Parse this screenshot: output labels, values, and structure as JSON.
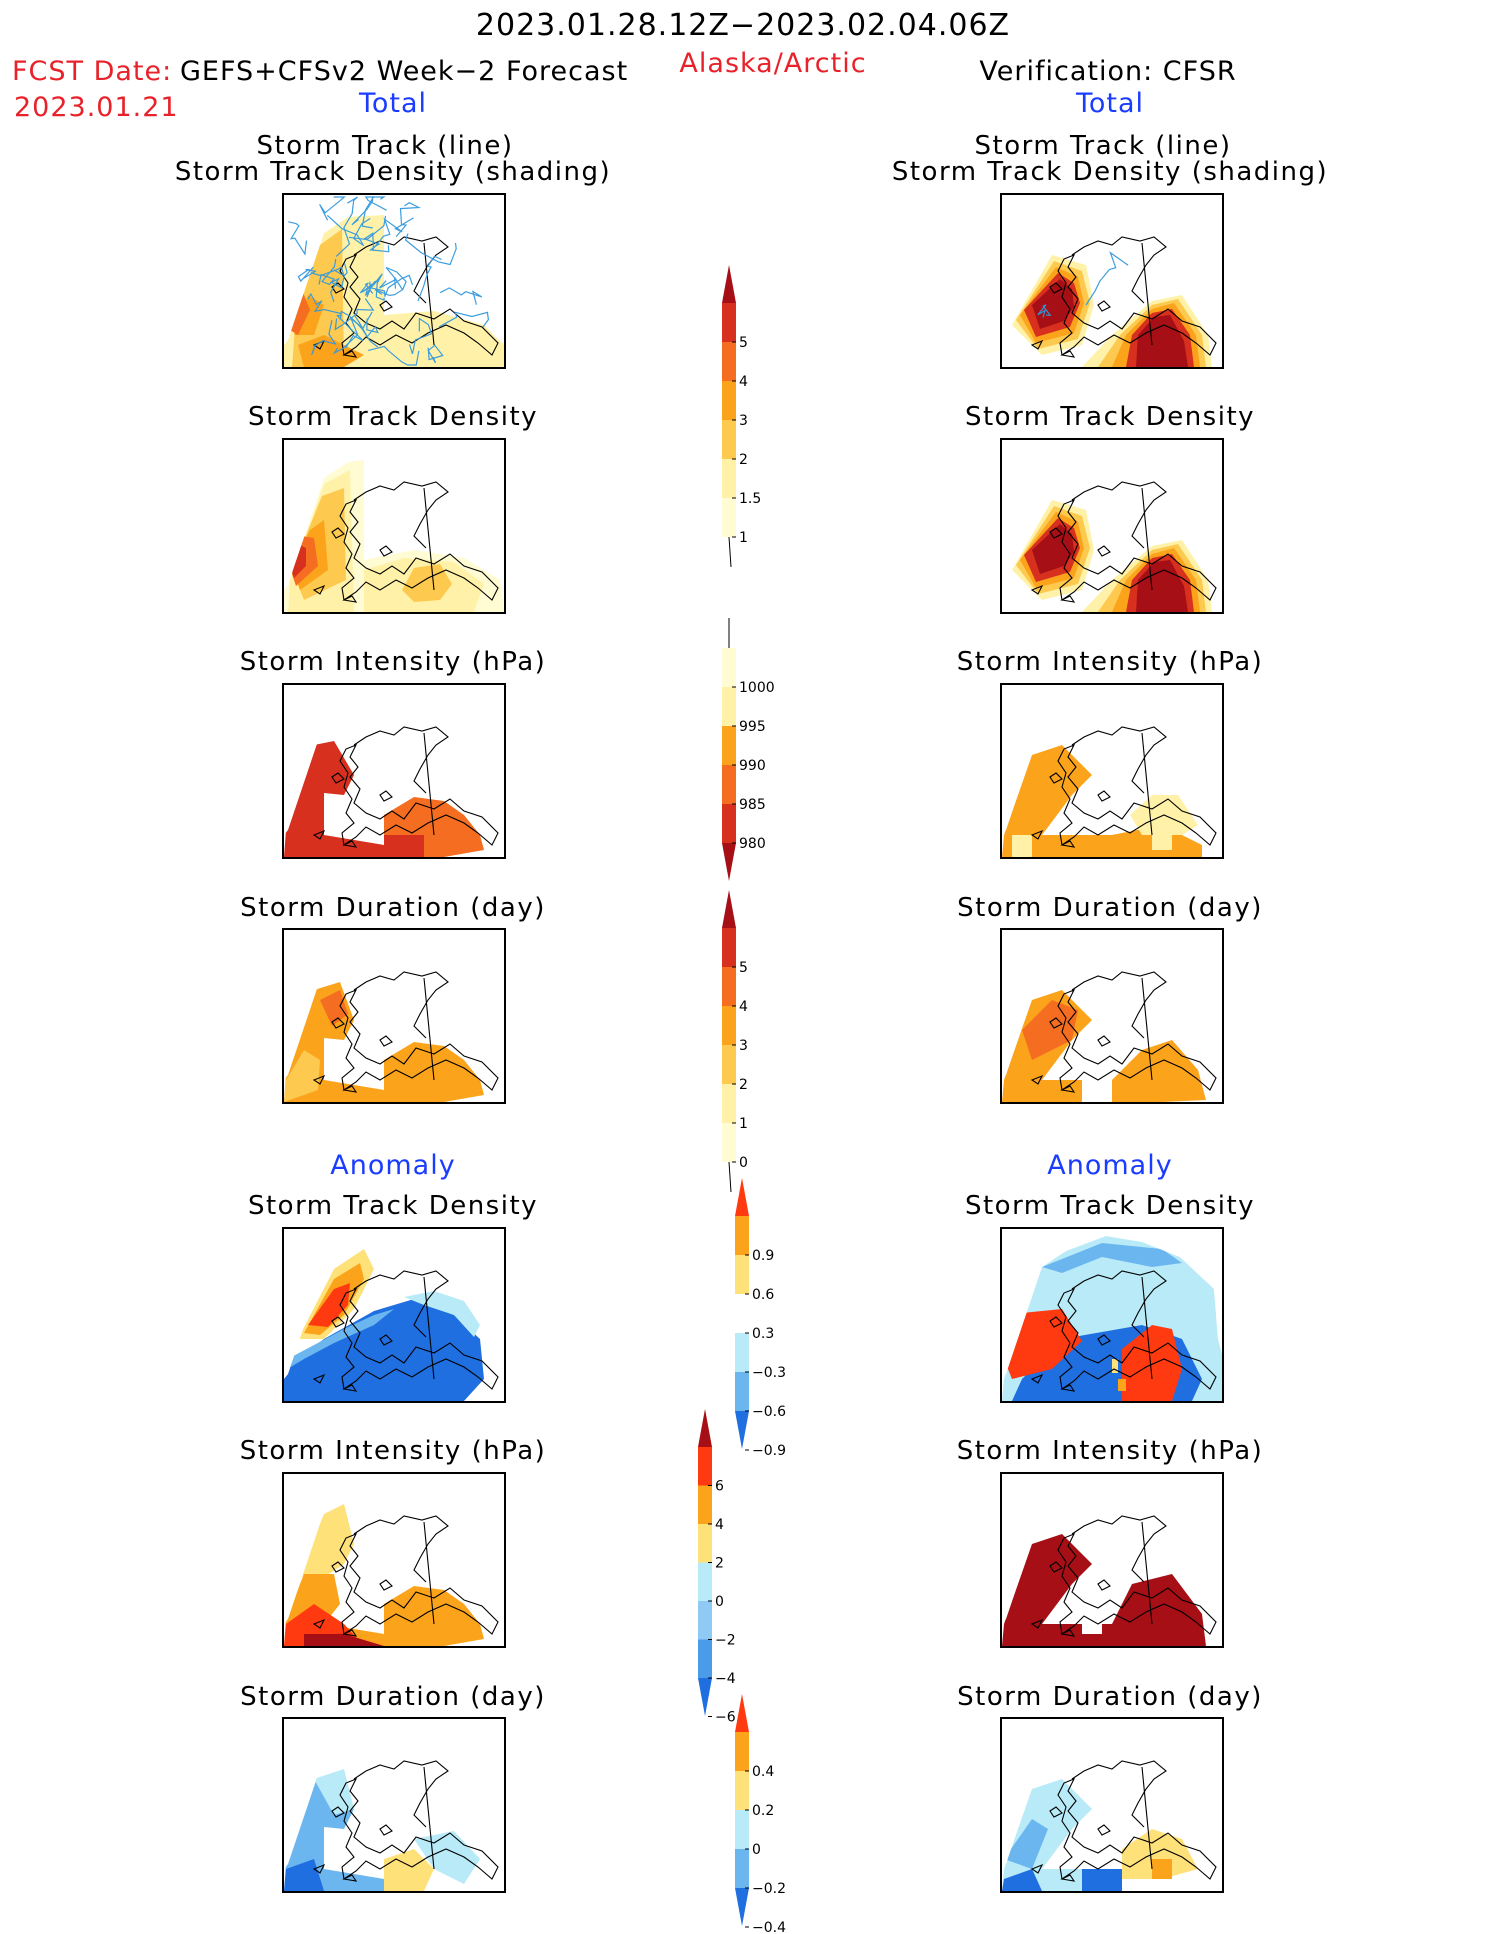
{
  "header": {
    "date_range": "2023.01.28.12Z−2023.02.04.06Z",
    "fcst_label": "FCST Date:",
    "fcst_model": "GEFS+CFSv2 Week−2 Forecast",
    "fcst_date": "2023.01.21",
    "region": "Alaska/Arctic",
    "verification": "Verification: CFSR"
  },
  "sections": {
    "total": "Total",
    "anomaly": "Anomaly"
  },
  "panel_titles": {
    "track_line": "Storm Track (line)",
    "track_shading": "Storm Track Density (shading)",
    "density": "Storm Track Density",
    "intensity": "Storm Intensity (hPa)",
    "duration": "Storm Duration (day)"
  },
  "colorbars": [
    {
      "id": "density-total",
      "labels": [
        "5",
        "4",
        "3",
        "2",
        "1.5",
        "1"
      ],
      "colors": [
        "#a50f15",
        "#d7301f",
        "#f46d20",
        "#fca31c",
        "#fdc94f",
        "#fff2a8",
        "#fffbd3"
      ]
    },
    {
      "id": "intensity-total",
      "labels": [
        "1000",
        "995",
        "990",
        "985",
        "980"
      ],
      "colors": [
        "#fffbd3",
        "#fff2a8",
        "#fca31c",
        "#f46d20",
        "#d7301f",
        "#a50f15"
      ]
    },
    {
      "id": "duration-total",
      "labels": [
        "5",
        "4",
        "3",
        "2",
        "1",
        "0"
      ],
      "colors": [
        "#a50f15",
        "#d7301f",
        "#f46d20",
        "#fca31c",
        "#fdc94f",
        "#fff2a8",
        "#fffbd3"
      ]
    },
    {
      "id": "density-anom",
      "labels": [
        "0.9",
        "0.6",
        "0.3",
        "−0.3",
        "−0.6",
        "−0.9"
      ],
      "colors": [
        "#ff3a10",
        "#fca31c",
        "#ffe17a",
        "#ffffff",
        "#b8eaf7",
        "#6cb6ef",
        "#1f6fe0"
      ]
    },
    {
      "id": "intensity-anom",
      "labels": [
        "6",
        "4",
        "2",
        "0",
        "−2",
        "−4",
        "−6"
      ],
      "colors": [
        "#a50f15",
        "#ff3a10",
        "#fca31c",
        "#ffe17a",
        "#b8eaf7",
        "#8fcaf5",
        "#4a9be8",
        "#1f6fe0"
      ]
    },
    {
      "id": "duration-anom",
      "labels": [
        "0.4",
        "0.2",
        "0",
        "−0.2",
        "−0.4"
      ],
      "colors": [
        "#ff3a10",
        "#fca31c",
        "#ffe17a",
        "#b8eaf7",
        "#6cb6ef",
        "#1f6fe0"
      ]
    }
  ],
  "palette": {
    "track_line": "#3399dd",
    "dark_red": "#a50f15",
    "red": "#d7301f",
    "orange_red": "#f46d20",
    "orange": "#fca31c",
    "light_orange": "#fdc94f",
    "yellow": "#fff2a8",
    "pale": "#fffbd3",
    "anom_red": "#ff3a10",
    "anom_yellow": "#ffe17a",
    "anom_lightblue": "#b8eaf7",
    "anom_blue": "#6cb6ef",
    "anom_darkblue": "#1f6fe0"
  }
}
